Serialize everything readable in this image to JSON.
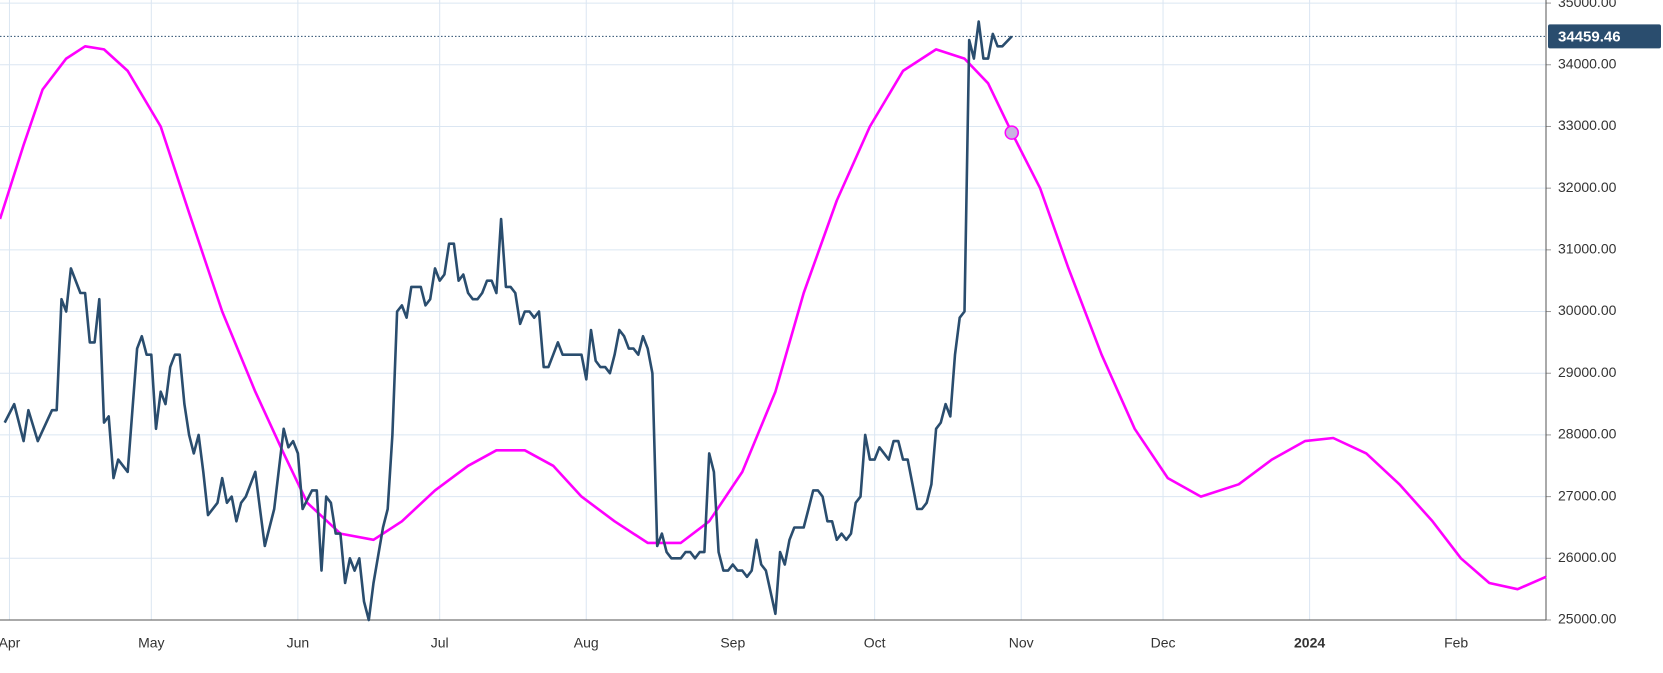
{
  "chart_data": {
    "type": "line",
    "y_axis_side": "right",
    "grid": true,
    "xlim": [
      -2,
      325
    ],
    "ylim": [
      25000,
      35050
    ],
    "xticks": [
      {
        "value": 0,
        "label": "Apr"
      },
      {
        "value": 30,
        "label": "May"
      },
      {
        "value": 61,
        "label": "Jun"
      },
      {
        "value": 91,
        "label": "Jul"
      },
      {
        "value": 122,
        "label": "Aug"
      },
      {
        "value": 153,
        "label": "Sep"
      },
      {
        "value": 183,
        "label": "Oct"
      },
      {
        "value": 214,
        "label": "Nov"
      },
      {
        "value": 244,
        "label": "Dec"
      },
      {
        "value": 275,
        "label": "2024"
      },
      {
        "value": 306,
        "label": "Feb"
      }
    ],
    "yticks": [
      {
        "value": 25000,
        "label": "25000.00"
      },
      {
        "value": 26000,
        "label": "26000.00"
      },
      {
        "value": 27000,
        "label": "27000.00"
      },
      {
        "value": 28000,
        "label": "28000.00"
      },
      {
        "value": 29000,
        "label": "29000.00"
      },
      {
        "value": 30000,
        "label": "30000.00"
      },
      {
        "value": 31000,
        "label": "31000.00"
      },
      {
        "value": 32000,
        "label": "32000.00"
      },
      {
        "value": 33000,
        "label": "33000.00"
      },
      {
        "value": 34000,
        "label": "34000.00"
      },
      {
        "value": 35000,
        "label": "35000.00"
      }
    ],
    "series": [
      {
        "color": "#2a4d6e",
        "x": [
          -1,
          1,
          3,
          4,
          6,
          9,
          10,
          11,
          12,
          13,
          15,
          16,
          17,
          18,
          19,
          20,
          21,
          22,
          23,
          25,
          27,
          28,
          29,
          30,
          31,
          32,
          33,
          34,
          35,
          36,
          37,
          38,
          39,
          40,
          41,
          42,
          44,
          45,
          46,
          47,
          48,
          49,
          50,
          52,
          53,
          54,
          56,
          58,
          59,
          60,
          61,
          62,
          64,
          65,
          66,
          67,
          68,
          69,
          70,
          71,
          72,
          73,
          74,
          75,
          76,
          77,
          79,
          80,
          81,
          82,
          83,
          84,
          85,
          86,
          87,
          88,
          89,
          90,
          91,
          92,
          93,
          94,
          95,
          96,
          97,
          98,
          99,
          100,
          101,
          102,
          103,
          104,
          105,
          106,
          107,
          108,
          109,
          110,
          111,
          112,
          113,
          114,
          115,
          116,
          117,
          118,
          119,
          121,
          122,
          123,
          124,
          125,
          126,
          127,
          128,
          129,
          130,
          131,
          132,
          133,
          134,
          135,
          136,
          137,
          138,
          139,
          140,
          141,
          142,
          143,
          144,
          145,
          146,
          147,
          148,
          149,
          150,
          151,
          152,
          153,
          154,
          155,
          156,
          157,
          158,
          159,
          160,
          162,
          163,
          164,
          165,
          166,
          167,
          168,
          169,
          170,
          171,
          172,
          173,
          174,
          175,
          176,
          177,
          178,
          179,
          180,
          181,
          182,
          183,
          184,
          185,
          186,
          187,
          188,
          189,
          190,
          191,
          192,
          193,
          194,
          195,
          196,
          197,
          198,
          199,
          200,
          201,
          202,
          203,
          204,
          205,
          206,
          207,
          208,
          209,
          210,
          212
        ],
        "values": [
          28200,
          28500,
          27900,
          28400,
          27900,
          28400,
          28400,
          30200,
          30000,
          30700,
          30300,
          30300,
          29500,
          29500,
          30200,
          28200,
          28300,
          27300,
          27600,
          27400,
          29400,
          29600,
          29300,
          29300,
          28100,
          28700,
          28500,
          29100,
          29300,
          29300,
          28500,
          28000,
          27700,
          28000,
          27400,
          26700,
          26900,
          27300,
          26900,
          27000,
          26600,
          26900,
          27000,
          27400,
          26800,
          26200,
          26800,
          28100,
          27800,
          27900,
          27700,
          26800,
          27100,
          27100,
          25800,
          27000,
          26900,
          26400,
          26400,
          25600,
          26000,
          25800,
          26000,
          25300,
          25000,
          25600,
          26500,
          26800,
          28000,
          30000,
          30100,
          29900,
          30400,
          30400,
          30400,
          30100,
          30200,
          30700,
          30500,
          30600,
          31100,
          31100,
          30500,
          30600,
          30300,
          30200,
          30200,
          30300,
          30500,
          30500,
          30300,
          31500,
          30400,
          30400,
          30300,
          29800,
          30000,
          30000,
          29900,
          30000,
          29100,
          29100,
          29300,
          29500,
          29300,
          29300,
          29300,
          29300,
          28900,
          29700,
          29200,
          29100,
          29100,
          29000,
          29300,
          29700,
          29600,
          29400,
          29400,
          29300,
          29600,
          29400,
          29000,
          26200,
          26400,
          26100,
          26000,
          26000,
          26000,
          26100,
          26100,
          26000,
          26100,
          26100,
          27700,
          27400,
          26100,
          25800,
          25800,
          25900,
          25800,
          25800,
          25700,
          25800,
          26300,
          25900,
          25800,
          25100,
          26100,
          25900,
          26300,
          26500,
          26500,
          26500,
          26800,
          27100,
          27100,
          27000,
          26600,
          26600,
          26300,
          26400,
          26300,
          26400,
          26900,
          27000,
          28000,
          27600,
          27600,
          27800,
          27700,
          27600,
          27900,
          27900,
          27600,
          27600,
          27200,
          26800,
          26800,
          26900,
          27200,
          28100,
          28200,
          28500,
          28300,
          29300,
          29900,
          30000,
          34400,
          34100,
          34700,
          34100,
          34100,
          34500,
          34300,
          34300,
          34459.46
        ]
      },
      {
        "color": "#ff00ff",
        "x": [
          -2,
          3,
          7,
          12,
          16,
          20,
          25,
          32,
          38,
          45,
          52,
          58,
          63,
          70,
          77,
          83,
          90,
          97,
          103,
          109,
          115,
          121,
          128,
          135,
          142,
          148,
          155,
          162,
          168,
          175,
          182,
          189,
          196,
          202,
          207,
          212,
          218,
          224,
          231,
          238,
          245,
          252,
          260,
          267,
          274,
          280,
          287,
          294,
          301,
          307,
          313,
          319,
          325
        ],
        "values": [
          31500,
          32700,
          33600,
          34100,
          34300,
          34250,
          33900,
          33000,
          31600,
          30000,
          28700,
          27700,
          26900,
          26400,
          26300,
          26600,
          27100,
          27500,
          27750,
          27750,
          27500,
          27000,
          26600,
          26250,
          26250,
          26600,
          27400,
          28700,
          30300,
          31800,
          33000,
          33900,
          34250,
          34100,
          33700,
          32900,
          32000,
          30700,
          29300,
          28100,
          27300,
          27000,
          27200,
          27600,
          27900,
          27950,
          27700,
          27200,
          26600,
          26000,
          25600,
          25500,
          25700
        ]
      }
    ]
  }
}
